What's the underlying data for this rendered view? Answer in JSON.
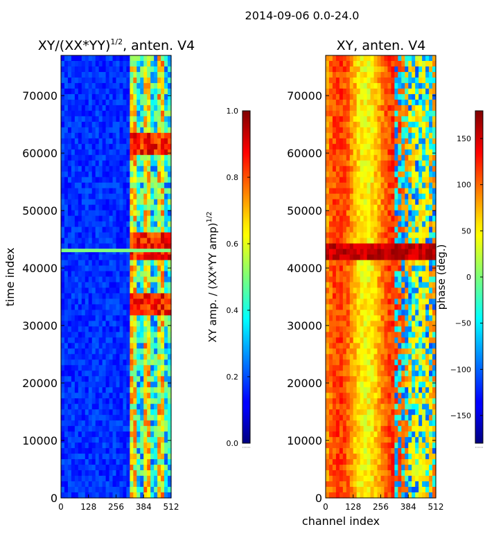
{
  "suptitle": "2014-09-06 0.0-24.0",
  "chart_data": [
    {
      "type": "heatmap",
      "title_main": "XY/(XX*YY)",
      "title_exp": "1/2",
      "title_tail": ", anten. V4",
      "xlabel": "",
      "ylabel": "time index",
      "xlim": [
        0,
        512
      ],
      "ylim": [
        0,
        77000
      ],
      "xticks": [
        0,
        128,
        256,
        384,
        512
      ],
      "yticks": [
        0,
        10000,
        20000,
        30000,
        40000,
        50000,
        60000,
        70000
      ],
      "colorbar": {
        "label_main": "XY amp. / (XX*YY amp)",
        "label_exp": "1/2",
        "range": [
          0.0,
          1.0
        ],
        "ticks": [
          "0.0",
          "0.2",
          "0.4",
          "0.6",
          "0.8",
          "1.0"
        ]
      }
    },
    {
      "type": "heatmap",
      "title_main": "XY, anten. V4",
      "xlabel": "channel index",
      "ylabel": "",
      "xlim": [
        0,
        512
      ],
      "ylim": [
        0,
        77000
      ],
      "xticks": [
        0,
        128,
        256,
        384,
        512
      ],
      "yticks": [
        0,
        10000,
        20000,
        30000,
        40000,
        50000,
        60000,
        70000
      ],
      "colorbar": {
        "label_main": "phase (deg.)",
        "range": [
          -180,
          180
        ],
        "ticks": [
          "−150",
          "−100",
          "−50",
          "0",
          "50",
          "100",
          "150"
        ]
      }
    }
  ]
}
